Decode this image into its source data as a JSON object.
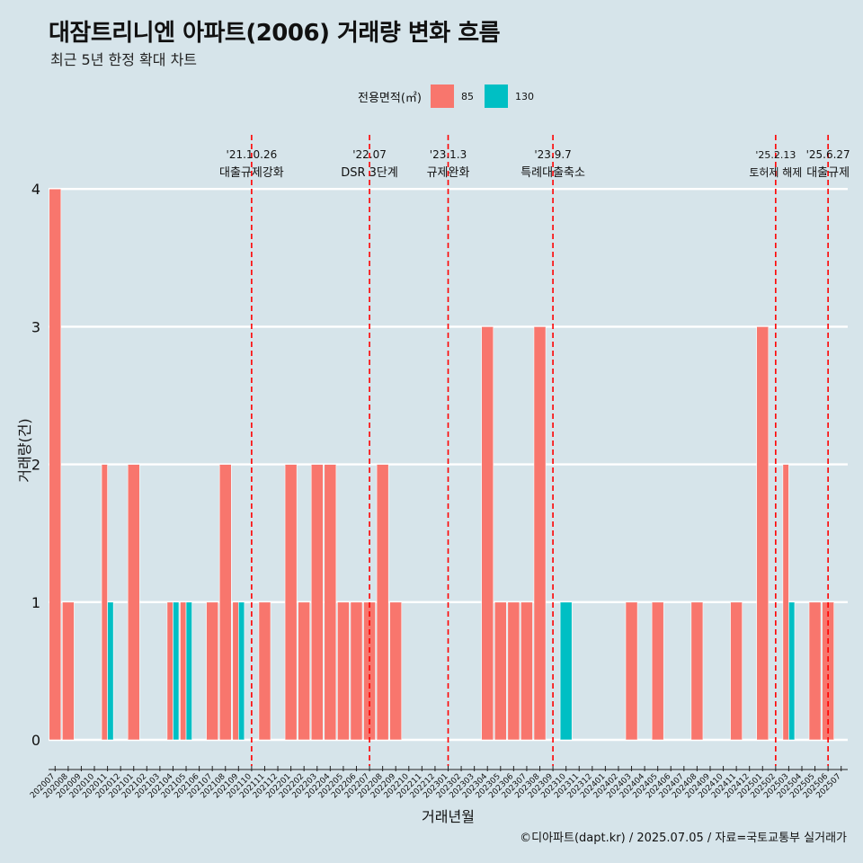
{
  "title": "대잠트리니엔 아파트(2006) 거래량 변화 흐름",
  "subtitle": "최근 5년 한정 확대 차트",
  "caption": "©디아파트(dapt.kr) / 2025.07.05 / 자료=국토교통부 실거래가",
  "legend": {
    "title": "전용면적(㎡)",
    "items": [
      {
        "label": "85",
        "color": "#f8766d"
      },
      {
        "label": "130",
        "color": "#00bfc4"
      }
    ]
  },
  "chart_data": {
    "type": "bar",
    "xlabel": "거래년월",
    "ylabel": "거래량(건)",
    "ylim": [
      0,
      4
    ],
    "yticks": [
      0,
      1,
      2,
      3,
      4
    ],
    "grid": true,
    "legend_position": "top",
    "categories": [
      "202007",
      "202008",
      "202009",
      "202010",
      "202011",
      "202012",
      "202101",
      "202102",
      "202103",
      "202104",
      "202105",
      "202106",
      "202107",
      "202108",
      "202109",
      "202110",
      "202111",
      "202112",
      "202201",
      "202202",
      "202203",
      "202204",
      "202205",
      "202206",
      "202207",
      "202208",
      "202209",
      "202210",
      "202211",
      "202212",
      "202301",
      "202302",
      "202303",
      "202304",
      "202305",
      "202306",
      "202307",
      "202308",
      "202309",
      "202310",
      "202311",
      "202312",
      "202401",
      "202402",
      "202403",
      "202404",
      "202405",
      "202406",
      "202407",
      "202408",
      "202409",
      "202410",
      "202411",
      "202412",
      "202501",
      "202502",
      "202503",
      "202504",
      "202505",
      "202506",
      "202507"
    ],
    "series": [
      {
        "name": "85",
        "color": "#f8766d",
        "values": [
          4,
          1,
          0,
          0,
          2,
          0,
          2,
          0,
          0,
          1,
          1,
          0,
          1,
          2,
          1,
          0,
          1,
          0,
          2,
          1,
          2,
          2,
          1,
          1,
          1,
          2,
          1,
          0,
          0,
          0,
          0,
          0,
          0,
          3,
          1,
          1,
          1,
          3,
          0,
          0,
          0,
          0,
          0,
          0,
          1,
          0,
          1,
          0,
          0,
          1,
          0,
          0,
          1,
          0,
          3,
          0,
          2,
          0,
          1,
          1,
          0
        ]
      },
      {
        "name": "130",
        "color": "#00bfc4",
        "values": [
          0,
          0,
          0,
          0,
          1,
          0,
          0,
          0,
          0,
          1,
          1,
          0,
          0,
          0,
          1,
          0,
          0,
          0,
          0,
          0,
          0,
          0,
          0,
          0,
          0,
          0,
          0,
          0,
          0,
          0,
          0,
          0,
          0,
          0,
          0,
          0,
          0,
          0,
          0,
          1,
          0,
          0,
          0,
          0,
          0,
          0,
          0,
          0,
          0,
          0,
          0,
          0,
          0,
          0,
          0,
          0,
          1,
          0,
          0,
          0,
          0
        ]
      }
    ],
    "annotations": [
      {
        "at": "202110",
        "date": "'21.10.26",
        "label": "대출규제강화"
      },
      {
        "at": "202207",
        "date": "'22.07",
        "label": "DSR 3단계"
      },
      {
        "at": "202301",
        "date": "'23.1.3",
        "label": "규제완화"
      },
      {
        "at": "202309",
        "date": "'23.9.7",
        "label": "특례대출축소"
      },
      {
        "at": "202502",
        "date": "'25.2.13",
        "label": "토허제 해제"
      },
      {
        "at": "202506",
        "date": "'25.6.27",
        "label": "대출규제"
      }
    ]
  }
}
